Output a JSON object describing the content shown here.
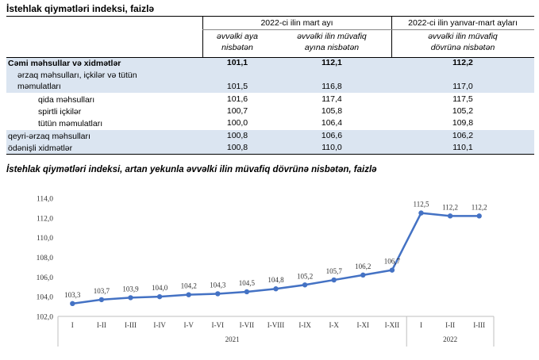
{
  "table": {
    "title": "İstehlak qiymətləri indeksi, faizlə",
    "header_group_1": "2022-ci ilin mart ayı",
    "header_group_2": "2022-ci ilin yanvar-mart ayları",
    "subheader_1": [
      "əvvəlki aya",
      "nisbətən"
    ],
    "subheader_2": [
      "əvvəlki ilin müvafiq",
      "ayına nisbətən"
    ],
    "subheader_3": [
      "əvvəlki ilin müvafiq",
      "dövrünə nisbətən"
    ],
    "rows": [
      {
        "label": "Cəmi məhsullar və xidmətlər",
        "v1": "101,1",
        "v2": "112,1",
        "v3": "112,2"
      },
      {
        "label": "ərzaq məhsulları, içkilər və tütün",
        "label2": "məmulatları",
        "v1": "101,5",
        "v2": "116,8",
        "v3": "117,0"
      },
      {
        "label": "qida məhsulları",
        "v1": "101,6",
        "v2": "117,4",
        "v3": "117,5"
      },
      {
        "label": "spirtli içkilər",
        "v1": "100,7",
        "v2": "105,8",
        "v3": "105,2"
      },
      {
        "label": "tütün məmulatları",
        "v1": "100,0",
        "v2": "106,4",
        "v3": "109,8"
      },
      {
        "label": "qeyri-ərzaq məhsulları",
        "v1": "100,8",
        "v2": "106,6",
        "v3": "106,2"
      },
      {
        "label": "ödənişli xidmətlər",
        "v1": "100,8",
        "v2": "110,0",
        "v3": "110,1"
      }
    ]
  },
  "chart_data": {
    "type": "line",
    "title": "İstehlak qiymətləri indeksi, artan yekunla əvvəlki ilin müvafiq dövrünə nisbətən, faizlə",
    "categories": [
      "I",
      "I-II",
      "I-III",
      "I-IV",
      "I-V",
      "I-VI",
      "I-VII",
      "I-VIII",
      "I-IX",
      "I-X",
      "I-XI",
      "I-XII",
      "I",
      "I-II",
      "I-III"
    ],
    "year_groups": [
      {
        "label": "2021",
        "count": 12
      },
      {
        "label": "2022",
        "count": 3
      }
    ],
    "values": [
      103.3,
      103.7,
      103.9,
      104.0,
      104.2,
      104.3,
      104.5,
      104.8,
      105.2,
      105.7,
      106.2,
      106.7,
      112.5,
      112.2,
      112.2
    ],
    "value_labels": [
      "103,3",
      "103,7",
      "103,9",
      "104,0",
      "104,2",
      "104,3",
      "104,5",
      "104,8",
      "105,2",
      "105,7",
      "106,2",
      "106,7",
      "112,5",
      "112,2",
      "112,2"
    ],
    "y_ticks": [
      "102,0",
      "104,0",
      "106,0",
      "108,0",
      "110,0",
      "112,0",
      "114,0"
    ],
    "ylim": [
      102,
      114
    ],
    "line_color": "#4472c4",
    "grid": false,
    "legend": "none"
  }
}
